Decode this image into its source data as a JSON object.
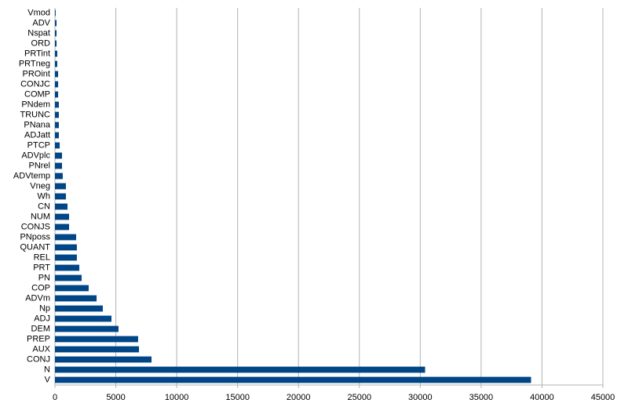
{
  "chart_data": {
    "type": "hbar",
    "color": "#004586",
    "grid": true,
    "categories": [
      "V",
      "N",
      "CONJ",
      "AUX",
      "PREP",
      "DEM",
      "ADJ",
      "Np",
      "ADVm",
      "COP",
      "PN",
      "PRT",
      "REL",
      "QUANT",
      "PNposs",
      "CONJS",
      "NUM",
      "CN",
      "Wh",
      "Vneg",
      "ADVtemp",
      "PNrel",
      "ADVplc",
      "PTCP",
      "ADJatt",
      "PNana",
      "TRUNC",
      "PNdem",
      "COMP",
      "CONJC",
      "PROint",
      "PRTneg",
      "PRTint",
      "ORD",
      "Nspat",
      "ADV",
      "Vmod"
    ],
    "values": [
      39100,
      30400,
      7930,
      6900,
      6830,
      5220,
      4640,
      3930,
      3420,
      2770,
      2190,
      2000,
      1800,
      1800,
      1740,
      1160,
      1160,
      1030,
      900,
      900,
      640,
      580,
      580,
      390,
      320,
      320,
      320,
      320,
      260,
      260,
      260,
      190,
      190,
      130,
      130,
      130,
      60
    ],
    "xlim": [
      0,
      45000
    ],
    "xticks": [
      0,
      5000,
      10000,
      15000,
      20000,
      25000,
      30000,
      35000,
      40000,
      45000
    ]
  }
}
